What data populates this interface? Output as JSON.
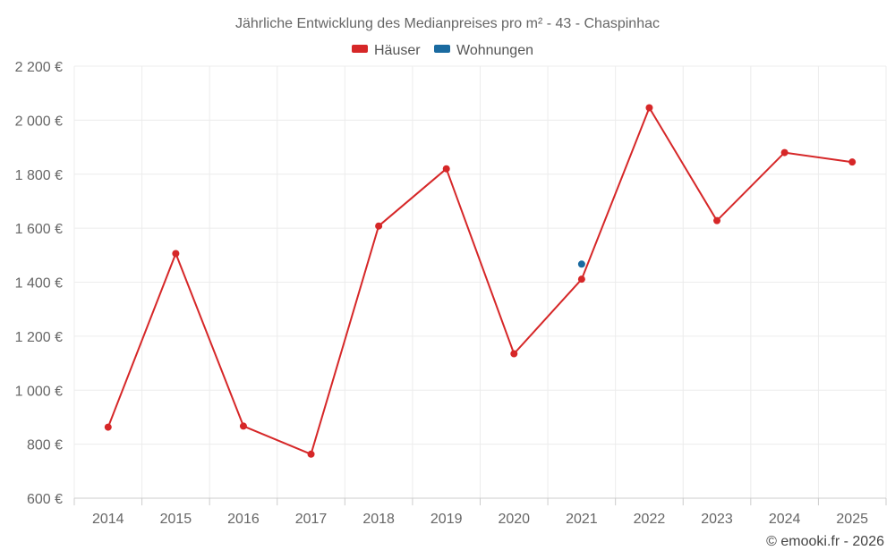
{
  "chart_data": {
    "type": "line",
    "title": "Jährliche Entwicklung des Medianpreises pro m² - 43 - Chaspinhac",
    "xlabel": "",
    "ylabel": "",
    "categories": [
      "2014",
      "2015",
      "2016",
      "2017",
      "2018",
      "2019",
      "2020",
      "2021",
      "2022",
      "2023",
      "2024",
      "2025"
    ],
    "ylim": [
      600,
      2200
    ],
    "yticks": [
      600,
      800,
      1000,
      1200,
      1400,
      1600,
      1800,
      2000,
      2200
    ],
    "ytick_labels": [
      "600 €",
      "800 €",
      "1 000 €",
      "1 200 €",
      "1 400 €",
      "1 600 €",
      "1 800 €",
      "2 000 €",
      "2 200 €"
    ],
    "grid": true,
    "legend_position": "top-center",
    "series": [
      {
        "name": "Häuser",
        "color": "#d62728",
        "values": [
          863,
          1506,
          867,
          763,
          1608,
          1820,
          1135,
          1411,
          2046,
          1628,
          1880,
          1845
        ]
      },
      {
        "name": "Wohnungen",
        "color": "#1a6aa0",
        "values": [
          null,
          null,
          null,
          null,
          null,
          null,
          null,
          1467,
          null,
          null,
          null,
          null
        ]
      }
    ],
    "credit": "© emooki.fr - 2026"
  }
}
